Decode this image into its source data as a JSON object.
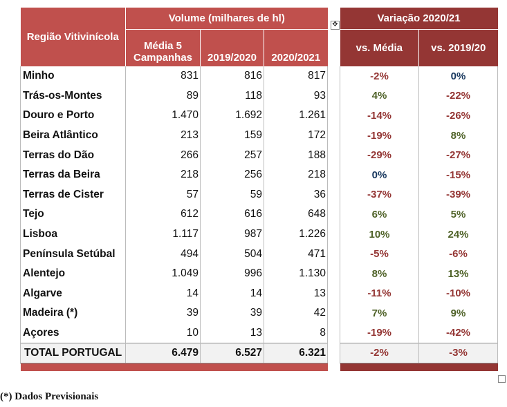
{
  "header": {
    "region_label": "Região Vitivinícola",
    "volume_label": "Volume (milhares de hl)",
    "col_avg": "Média 5 Campanhas",
    "col_1920": "2019/2020",
    "col_2021": "2020/2021",
    "variation_label": "Variação 2020/21",
    "col_vs_avg": "vs. Média",
    "col_vs_1920": "vs. 2019/20"
  },
  "rows": [
    {
      "region": "Minho",
      "avg": "831",
      "y1920": "816",
      "y2021": "817",
      "vs_avg": "-2%",
      "vs_1920": "0%"
    },
    {
      "region": "Trás-os-Montes",
      "avg": "89",
      "y1920": "118",
      "y2021": "93",
      "vs_avg": "4%",
      "vs_1920": "-22%"
    },
    {
      "region": "Douro e Porto",
      "avg": "1.470",
      "y1920": "1.692",
      "y2021": "1.261",
      "vs_avg": "-14%",
      "vs_1920": "-26%"
    },
    {
      "region": "Beira Atlântico",
      "avg": "213",
      "y1920": "159",
      "y2021": "172",
      "vs_avg": "-19%",
      "vs_1920": "8%"
    },
    {
      "region": "Terras do Dão",
      "avg": "266",
      "y1920": "257",
      "y2021": "188",
      "vs_avg": "-29%",
      "vs_1920": "-27%"
    },
    {
      "region": "Terras da Beira",
      "avg": "218",
      "y1920": "256",
      "y2021": "218",
      "vs_avg": "0%",
      "vs_1920": "-15%"
    },
    {
      "region": "Terras de Cister",
      "avg": "57",
      "y1920": "59",
      "y2021": "36",
      "vs_avg": "-37%",
      "vs_1920": "-39%"
    },
    {
      "region": "Tejo",
      "avg": "612",
      "y1920": "616",
      "y2021": "648",
      "vs_avg": "6%",
      "vs_1920": "5%"
    },
    {
      "region": "Lisboa",
      "avg": "1.117",
      "y1920": "987",
      "y2021": "1.226",
      "vs_avg": "10%",
      "vs_1920": "24%"
    },
    {
      "region": "Península Setúbal",
      "avg": "494",
      "y1920": "504",
      "y2021": "471",
      "vs_avg": "-5%",
      "vs_1920": "-6%"
    },
    {
      "region": "Alentejo",
      "avg": "1.049",
      "y1920": "996",
      "y2021": "1.130",
      "vs_avg": "8%",
      "vs_1920": "13%"
    },
    {
      "region": "Algarve",
      "avg": "14",
      "y1920": "14",
      "y2021": "13",
      "vs_avg": "-11%",
      "vs_1920": "-10%"
    },
    {
      "region": "Madeira (*)",
      "avg": "39",
      "y1920": "39",
      "y2021": "42",
      "vs_avg": "7%",
      "vs_1920": "9%"
    },
    {
      "region": "Açores",
      "avg": "10",
      "y1920": "13",
      "y2021": "8",
      "vs_avg": "-19%",
      "vs_1920": "-42%"
    }
  ],
  "total": {
    "region": "TOTAL PORTUGAL",
    "avg": "6.479",
    "y1920": "6.527",
    "y2021": "6.321",
    "vs_avg": "-2%",
    "vs_1920": "-3%"
  },
  "footnote": "(*) Dados Previsionais",
  "colors": {
    "header_left": "#c0504d",
    "header_right": "#943634",
    "negative": "#943634",
    "positive": "#4f6228",
    "zero": "#17375e"
  }
}
